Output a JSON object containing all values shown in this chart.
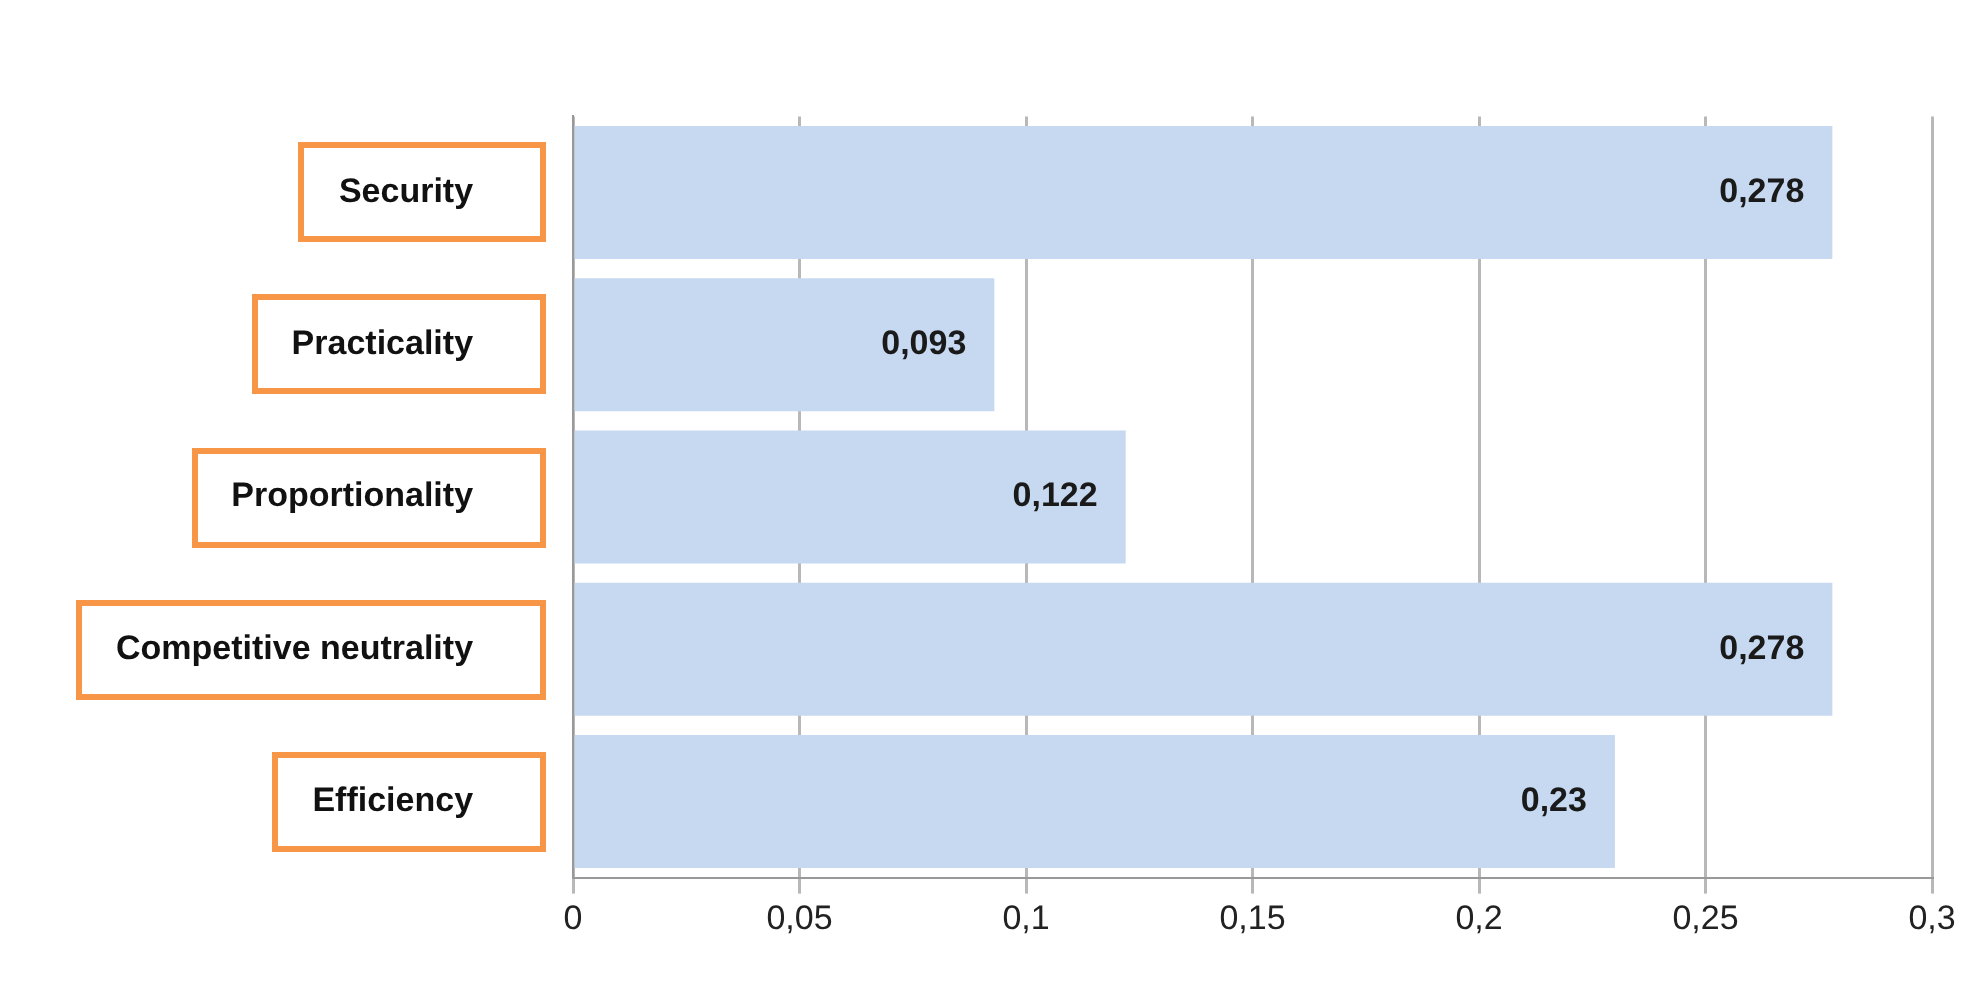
{
  "chart_data": {
    "type": "bar",
    "orientation": "horizontal",
    "categories": [
      "Security",
      "Practicality",
      "Proportionality",
      "Competitive neutrality",
      "Efficiency"
    ],
    "values": [
      0.278,
      0.093,
      0.122,
      0.278,
      0.23
    ],
    "value_labels": [
      "0,278",
      "0,093",
      "0,122",
      "0,278",
      "0,23"
    ],
    "color": "#c6d9f1",
    "xlim": [
      0,
      0.3
    ],
    "xticks": [
      {
        "value": 0,
        "label": "0"
      },
      {
        "value": 0.05,
        "label": "0,05"
      },
      {
        "value": 0.1,
        "label": "0,1"
      },
      {
        "value": 0.15,
        "label": "0,15"
      },
      {
        "value": 0.2,
        "label": "0,2"
      },
      {
        "value": 0.25,
        "label": "0,25"
      },
      {
        "value": 0.3,
        "label": "0,3"
      }
    ],
    "grid": "x",
    "legend": false
  }
}
